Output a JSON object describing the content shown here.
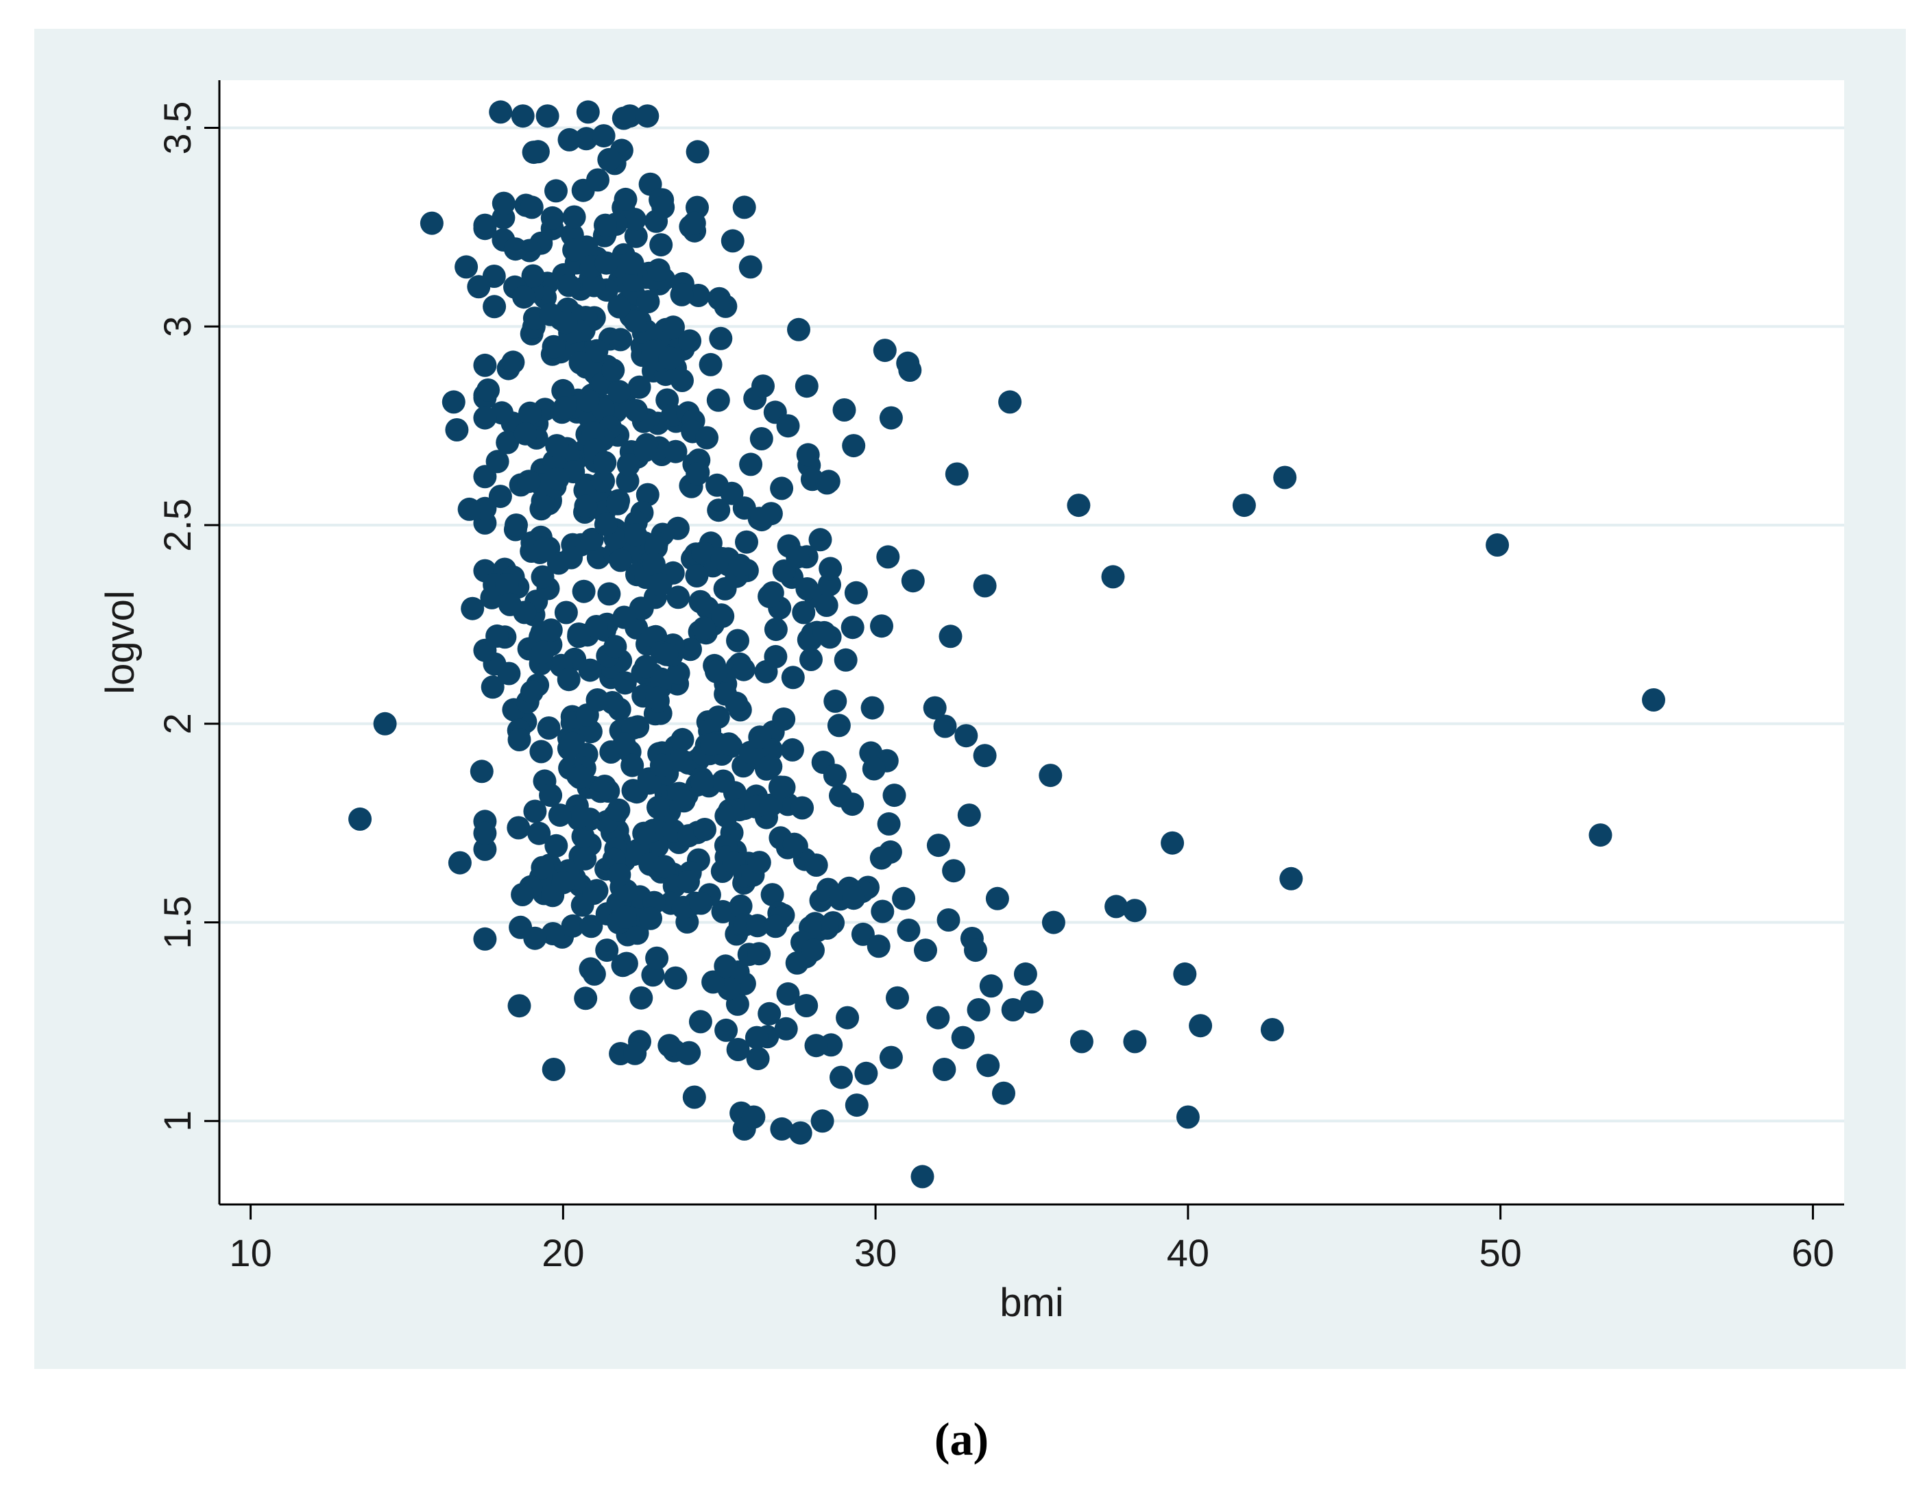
{
  "caption": "(a)",
  "colors": {
    "figure_background": "#eaf2f3",
    "plot_background": "#ffffff",
    "marker": "#0b4266",
    "gridline": "#e3eef1",
    "axis": "#000000"
  },
  "chart_data": {
    "type": "scatter",
    "xlabel": "bmi",
    "ylabel": "logvol",
    "xlim": [
      9,
      61
    ],
    "ylim": [
      0.79,
      3.62
    ],
    "xticks": [
      10,
      20,
      30,
      40,
      50,
      60
    ],
    "yticks": [
      1,
      1.5,
      2,
      2.5,
      3,
      3.5
    ],
    "xtick_labels": [
      "10",
      "20",
      "30",
      "40",
      "50",
      "60"
    ],
    "ytick_labels": [
      "1",
      "1.5",
      "2",
      "2.5",
      "3",
      "3.5"
    ],
    "grid": "horizontal",
    "legend": "none",
    "points": [
      [
        13.5,
        1.76
      ],
      [
        14.3,
        2.0
      ],
      [
        15.8,
        3.26
      ],
      [
        16.5,
        2.81
      ],
      [
        16.6,
        2.74
      ],
      [
        16.7,
        1.65
      ],
      [
        16.9,
        3.15
      ],
      [
        17.0,
        2.54
      ],
      [
        17.1,
        2.29
      ],
      [
        17.3,
        3.1
      ],
      [
        17.4,
        1.88
      ],
      [
        17.5,
        2.77
      ],
      [
        17.6,
        2.84
      ],
      [
        17.8,
        3.05
      ],
      [
        17.8,
        2.35
      ],
      [
        17.9,
        2.66
      ],
      [
        18.0,
        3.54
      ],
      [
        18.1,
        3.31
      ],
      [
        18.2,
        2.35
      ],
      [
        18.3,
        2.3
      ],
      [
        18.4,
        2.91
      ],
      [
        18.5,
        2.5
      ],
      [
        18.6,
        1.29
      ],
      [
        18.6,
        1.96
      ],
      [
        18.7,
        1.57
      ],
      [
        18.8,
        2.73
      ],
      [
        18.9,
        2.61
      ],
      [
        19.0,
        2.08
      ],
      [
        19.0,
        3.3
      ],
      [
        19.1,
        1.46
      ],
      [
        19.2,
        3.44
      ],
      [
        19.3,
        1.93
      ],
      [
        19.4,
        2.44
      ],
      [
        19.5,
        3.53
      ],
      [
        19.6,
        1.82
      ],
      [
        19.7,
        1.13
      ],
      [
        19.8,
        2.7
      ],
      [
        19.9,
        1.77
      ],
      [
        20.0,
        1.6
      ],
      [
        20.1,
        2.28
      ],
      [
        20.2,
        3.47
      ],
      [
        20.3,
        1.95
      ],
      [
        20.5,
        2.22
      ],
      [
        20.7,
        1.66
      ],
      [
        20.8,
        3.54
      ],
      [
        20.9,
        1.49
      ],
      [
        21.0,
        1.37
      ],
      [
        21.1,
        2.06
      ],
      [
        21.2,
        1.83
      ],
      [
        21.3,
        3.48
      ],
      [
        21.4,
        1.43
      ],
      [
        21.6,
        2.89
      ],
      [
        21.8,
        1.62
      ],
      [
        22.0,
        3.32
      ],
      [
        22.3,
        1.17
      ],
      [
        22.5,
        1.31
      ],
      [
        22.8,
        1.51
      ],
      [
        23.0,
        1.41
      ],
      [
        23.2,
        3.3
      ],
      [
        23.4,
        1.19
      ],
      [
        23.6,
        1.36
      ],
      [
        23.8,
        3.08
      ],
      [
        24.0,
        1.17
      ],
      [
        24.2,
        1.06
      ],
      [
        24.2,
        3.26
      ],
      [
        24.4,
        1.25
      ],
      [
        24.6,
        2.72
      ],
      [
        24.8,
        1.35
      ],
      [
        25.0,
        3.07
      ],
      [
        25.2,
        1.39
      ],
      [
        25.4,
        2.58
      ],
      [
        25.6,
        1.18
      ],
      [
        25.7,
        1.02
      ],
      [
        25.8,
        0.98
      ],
      [
        25.8,
        3.3
      ],
      [
        26.0,
        3.15
      ],
      [
        26.1,
        1.01
      ],
      [
        26.2,
        1.21
      ],
      [
        26.4,
        2.85
      ],
      [
        26.6,
        1.27
      ],
      [
        26.8,
        1.49
      ],
      [
        27.0,
        0.98
      ],
      [
        27.2,
        2.75
      ],
      [
        27.2,
        1.32
      ],
      [
        27.5,
        2.42
      ],
      [
        27.6,
        0.97
      ],
      [
        27.7,
        2.28
      ],
      [
        27.8,
        2.85
      ],
      [
        28.0,
        1.43
      ],
      [
        28.1,
        1.19
      ],
      [
        28.3,
        1.0
      ],
      [
        28.5,
        2.61
      ],
      [
        28.7,
        1.87
      ],
      [
        28.9,
        1.11
      ],
      [
        29.0,
        2.79
      ],
      [
        29.1,
        1.26
      ],
      [
        29.3,
        2.7
      ],
      [
        29.4,
        1.04
      ],
      [
        29.6,
        1.47
      ],
      [
        29.7,
        1.12
      ],
      [
        29.9,
        2.04
      ],
      [
        30.1,
        1.44
      ],
      [
        30.3,
        2.94
      ],
      [
        30.4,
        2.42
      ],
      [
        30.5,
        1.16
      ],
      [
        30.5,
        2.77
      ],
      [
        30.6,
        1.82
      ],
      [
        30.7,
        1.31
      ],
      [
        30.9,
        1.56
      ],
      [
        31.1,
        2.89
      ],
      [
        31.2,
        2.36
      ],
      [
        31.5,
        0.86
      ],
      [
        31.6,
        1.43
      ],
      [
        31.9,
        2.04
      ],
      [
        32.0,
        1.26
      ],
      [
        32.2,
        1.13
      ],
      [
        32.4,
        2.22
      ],
      [
        32.5,
        1.63
      ],
      [
        32.8,
        1.21
      ],
      [
        32.9,
        1.97
      ],
      [
        33.0,
        1.77
      ],
      [
        33.2,
        1.43
      ],
      [
        33.3,
        1.28
      ],
      [
        33.5,
        1.92
      ],
      [
        33.6,
        1.14
      ],
      [
        33.7,
        1.34
      ],
      [
        33.9,
        1.56
      ],
      [
        34.1,
        1.07
      ],
      [
        34.3,
        2.81
      ],
      [
        34.4,
        1.28
      ],
      [
        34.8,
        1.37
      ],
      [
        35.0,
        1.3
      ],
      [
        35.6,
        1.87
      ],
      [
        35.7,
        1.5
      ],
      [
        36.5,
        2.55
      ],
      [
        36.6,
        1.2
      ],
      [
        37.6,
        2.37
      ],
      [
        37.7,
        1.54
      ],
      [
        38.3,
        1.53
      ],
      [
        38.3,
        1.2
      ],
      [
        39.5,
        1.7
      ],
      [
        39.9,
        1.37
      ],
      [
        40.0,
        1.01
      ],
      [
        40.4,
        1.24
      ],
      [
        41.8,
        2.55
      ],
      [
        42.7,
        1.23
      ],
      [
        43.1,
        2.62
      ],
      [
        43.3,
        1.61
      ],
      [
        49.9,
        2.45
      ],
      [
        53.2,
        1.72
      ],
      [
        54.9,
        2.06
      ]
    ],
    "clusters": [
      {
        "x_center": 21.3,
        "y_center": 3.05,
        "x_spread": 1.8,
        "y_spread": 0.22,
        "count": 140
      },
      {
        "x_center": 21.6,
        "y_center": 2.55,
        "x_spread": 2.4,
        "y_spread": 0.28,
        "count": 170
      },
      {
        "x_center": 22.8,
        "y_center": 2.05,
        "x_spread": 2.8,
        "y_spread": 0.25,
        "count": 150
      },
      {
        "x_center": 24.2,
        "y_center": 1.7,
        "x_spread": 2.8,
        "y_spread": 0.18,
        "count": 140
      },
      {
        "x_center": 26.5,
        "y_center": 1.45,
        "x_spread": 3.5,
        "y_spread": 0.2,
        "count": 50
      },
      {
        "x_center": 27.5,
        "y_center": 2.4,
        "x_spread": 2.5,
        "y_spread": 0.3,
        "count": 40
      }
    ]
  }
}
